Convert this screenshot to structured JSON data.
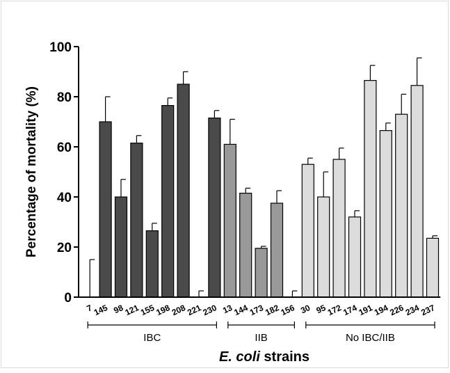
{
  "chart_data": {
    "type": "bar",
    "ylabel": "Percentage of mortality (%)",
    "xlabel_italic": "E. coli",
    "xlabel_rest": " strains",
    "ylim": [
      0,
      100
    ],
    "yticks": [
      "0",
      "20",
      "40",
      "60",
      "80",
      "100"
    ],
    "grid": false,
    "colors": {
      "IBC": "#4a4a4a",
      "IIB": "#999999",
      "No IBC/IIB": "#dcdcdc"
    },
    "groups": [
      {
        "label": "IBC",
        "categories": [
          "7",
          "145",
          "98",
          "121",
          "155",
          "198",
          "208",
          "221",
          "230"
        ]
      },
      {
        "label": "IIB",
        "categories": [
          "13",
          "144",
          "173",
          "182",
          "156"
        ]
      },
      {
        "label": "No IBC/IIB",
        "categories": [
          "30",
          "95",
          "172",
          "174",
          "191",
          "194",
          "226",
          "234",
          "237"
        ]
      }
    ],
    "bars": [
      {
        "x": "7",
        "group": "IBC",
        "value": 0,
        "error": 15
      },
      {
        "x": "145",
        "group": "IBC",
        "value": 70,
        "error": 10
      },
      {
        "x": "98",
        "group": "IBC",
        "value": 40,
        "error": 7
      },
      {
        "x": "121",
        "group": "IBC",
        "value": 61.5,
        "error": 3
      },
      {
        "x": "155",
        "group": "IBC",
        "value": 26.5,
        "error": 3
      },
      {
        "x": "198",
        "group": "IBC",
        "value": 76.5,
        "error": 3
      },
      {
        "x": "208",
        "group": "IBC",
        "value": 85,
        "error": 5
      },
      {
        "x": "221",
        "group": "IBC",
        "value": 0,
        "error": 2.5
      },
      {
        "x": "230",
        "group": "IBC",
        "value": 71.5,
        "error": 3
      },
      {
        "x": "13",
        "group": "IIB",
        "value": 61,
        "error": 10
      },
      {
        "x": "144",
        "group": "IIB",
        "value": 41.5,
        "error": 2
      },
      {
        "x": "173",
        "group": "IIB",
        "value": 19.5,
        "error": 0.8
      },
      {
        "x": "182",
        "group": "IIB",
        "value": 37.5,
        "error": 5
      },
      {
        "x": "156",
        "group": "IIB",
        "value": 0,
        "error": 2.5
      },
      {
        "x": "30",
        "group": "No IBC/IIB",
        "value": 53,
        "error": 2.5
      },
      {
        "x": "95",
        "group": "No IBC/IIB",
        "value": 40,
        "error": 10
      },
      {
        "x": "172",
        "group": "No IBC/IIB",
        "value": 55,
        "error": 4.5
      },
      {
        "x": "174",
        "group": "No IBC/IIB",
        "value": 32,
        "error": 2.5
      },
      {
        "x": "191",
        "group": "No IBC/IIB",
        "value": 86.5,
        "error": 6
      },
      {
        "x": "194",
        "group": "No IBC/IIB",
        "value": 66.5,
        "error": 3
      },
      {
        "x": "226",
        "group": "No IBC/IIB",
        "value": 73,
        "error": 8
      },
      {
        "x": "234",
        "group": "No IBC/IIB",
        "value": 84.5,
        "error": 11
      },
      {
        "x": "237",
        "group": "No IBC/IIB",
        "value": 23.5,
        "error": 1
      }
    ]
  }
}
